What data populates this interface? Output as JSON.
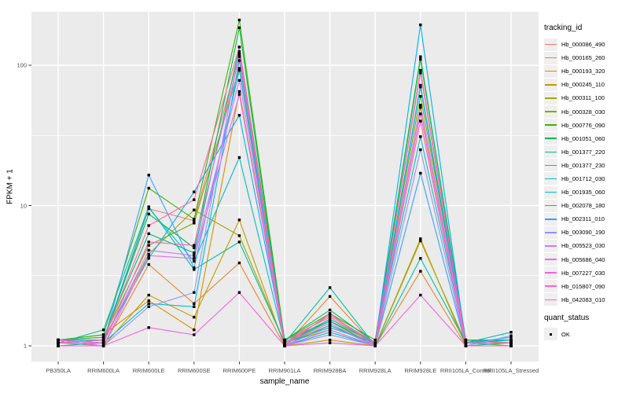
{
  "chart_data": {
    "type": "line",
    "title": "",
    "xlabel": "sample_name",
    "ylabel": "FPKM + 1",
    "scale": "log10",
    "ylim": [
      0.77,
      240
    ],
    "grid": true,
    "panel_bg": "#ebebeb",
    "grid_color": "#ffffff",
    "tick_color": "#333333",
    "axis_text_color": "#4d4d4d",
    "point_color": "#000000",
    "legend_position": "right",
    "categories": [
      "PB350LA",
      "RRIM600LA",
      "RRIM600LE",
      "RRIM600SE",
      "RRIM600PE",
      "RRIM901LA",
      "RRIM928BA",
      "RRIM928LA",
      "RRIM928LE",
      "RRII105LA_Control",
      "RRII105LA_Stressed"
    ],
    "y_ticks": [
      {
        "label": "1",
        "value": 1
      },
      {
        "label": "10",
        "value": 10
      },
      {
        "label": "100",
        "value": 100
      }
    ],
    "y_minor": [
      3.1623,
      31.623
    ],
    "legend": {
      "color_title": "tracking_id",
      "shape_title": "quant_status",
      "shape_items": [
        {
          "label": "OK"
        }
      ]
    },
    "series": [
      {
        "name": "Hb_000086_490",
        "color": "#F8766D",
        "values": [
          1.1,
          1.05,
          9.5,
          7.8,
          120,
          1.1,
          1.6,
          1.05,
          92,
          1.1,
          1.05
        ]
      },
      {
        "name": "Hb_000165_260",
        "color": "#EA8331",
        "values": [
          1.05,
          1.0,
          3.8,
          2.0,
          3.9,
          1.0,
          2.25,
          1.0,
          3.4,
          1.0,
          1.0
        ]
      },
      {
        "name": "Hb_000193_320",
        "color": "#D89000",
        "values": [
          1.1,
          1.2,
          2.1,
          1.3,
          65,
          1.05,
          1.4,
          1.05,
          50,
          1.05,
          1.1
        ]
      },
      {
        "name": "Hb_000245_110",
        "color": "#C09B00",
        "values": [
          1.0,
          1.0,
          2.3,
          1.6,
          7.9,
          1.0,
          1.1,
          1.0,
          5.8,
          1.0,
          1.0
        ]
      },
      {
        "name": "Hb_000311_100",
        "color": "#A3A500",
        "values": [
          1.05,
          1.1,
          4.5,
          9.3,
          6.1,
          1.05,
          1.3,
          1.0,
          5.6,
          1.05,
          1.0
        ]
      },
      {
        "name": "Hb_000328_030",
        "color": "#7CAE00",
        "values": [
          1.1,
          1.15,
          5.2,
          7.5,
          95,
          1.1,
          1.5,
          1.05,
          60,
          1.1,
          1.05
        ]
      },
      {
        "name": "Hb_000776_090",
        "color": "#39B600",
        "values": [
          1.1,
          1.2,
          13.3,
          8.0,
          210,
          1.1,
          1.7,
          1.1,
          115,
          1.1,
          1.1
        ]
      },
      {
        "name": "Hb_001051_060",
        "color": "#00BB4E",
        "values": [
          1.05,
          1.1,
          8.7,
          5.0,
          185,
          1.05,
          1.5,
          1.0,
          72,
          1.05,
          1.05
        ]
      },
      {
        "name": "Hb_001377_220",
        "color": "#00BF7D",
        "values": [
          1.1,
          1.15,
          6.3,
          4.6,
          135,
          1.1,
          1.8,
          1.05,
          110,
          1.1,
          1.1
        ]
      },
      {
        "name": "Hb_001377_230",
        "color": "#00C1A3",
        "values": [
          1.05,
          1.3,
          9.8,
          3.5,
          5.5,
          1.05,
          2.6,
          1.0,
          4.2,
          1.05,
          1.25
        ]
      },
      {
        "name": "Hb_001712_030",
        "color": "#00BFC4",
        "values": [
          1.1,
          1.1,
          9.6,
          4.0,
          22,
          1.05,
          1.35,
          1.05,
          31,
          1.05,
          1.15
        ]
      },
      {
        "name": "Hb_001935_060",
        "color": "#00BAE0",
        "values": [
          1.0,
          1.05,
          2.0,
          1.9,
          108,
          1.0,
          1.25,
          1.0,
          70,
          1.0,
          1.05
        ]
      },
      {
        "name": "Hb_002078_180",
        "color": "#00B0F6",
        "values": [
          1.05,
          1.1,
          4.2,
          12.5,
          44,
          1.05,
          1.55,
          1.05,
          194,
          1.05,
          1.1
        ]
      },
      {
        "name": "Hb_002311_010",
        "color": "#35A2FF",
        "values": [
          1.1,
          1.05,
          16.5,
          3.6,
          92,
          1.0,
          1.4,
          1.0,
          17,
          1.0,
          1.0
        ]
      },
      {
        "name": "Hb_003090_190",
        "color": "#9590FF",
        "values": [
          1.0,
          1.0,
          1.9,
          2.4,
          125,
          1.0,
          1.2,
          1.0,
          25,
          1.0,
          1.18
        ]
      },
      {
        "name": "Hb_005523_030",
        "color": "#C77CFF",
        "values": [
          1.05,
          1.05,
          4.8,
          4.4,
          78,
          1.05,
          1.45,
          1.0,
          52,
          1.05,
          1.05
        ]
      },
      {
        "name": "Hb_005686_040",
        "color": "#E76BF3",
        "values": [
          1.1,
          1.0,
          4.4,
          4.2,
          62,
          1.0,
          1.3,
          1.0,
          45,
          1.0,
          1.0
        ]
      },
      {
        "name": "Hb_007227_030",
        "color": "#FA62DB",
        "values": [
          1.0,
          1.0,
          1.35,
          1.2,
          2.4,
          1.0,
          1.05,
          1.0,
          2.3,
          1.0,
          1.0
        ]
      },
      {
        "name": "Hb_015807_090",
        "color": "#FF61CC",
        "values": [
          1.1,
          1.05,
          5.5,
          5.2,
          115,
          1.05,
          1.65,
          1.05,
          88,
          1.05,
          1.05
        ]
      },
      {
        "name": "Hb_042083_010",
        "color": "#FF6A98",
        "values": [
          1.05,
          1.1,
          7.2,
          11.0,
          135,
          1.0,
          1.7,
          1.0,
          40,
          1.0,
          1.0
        ]
      }
    ]
  }
}
